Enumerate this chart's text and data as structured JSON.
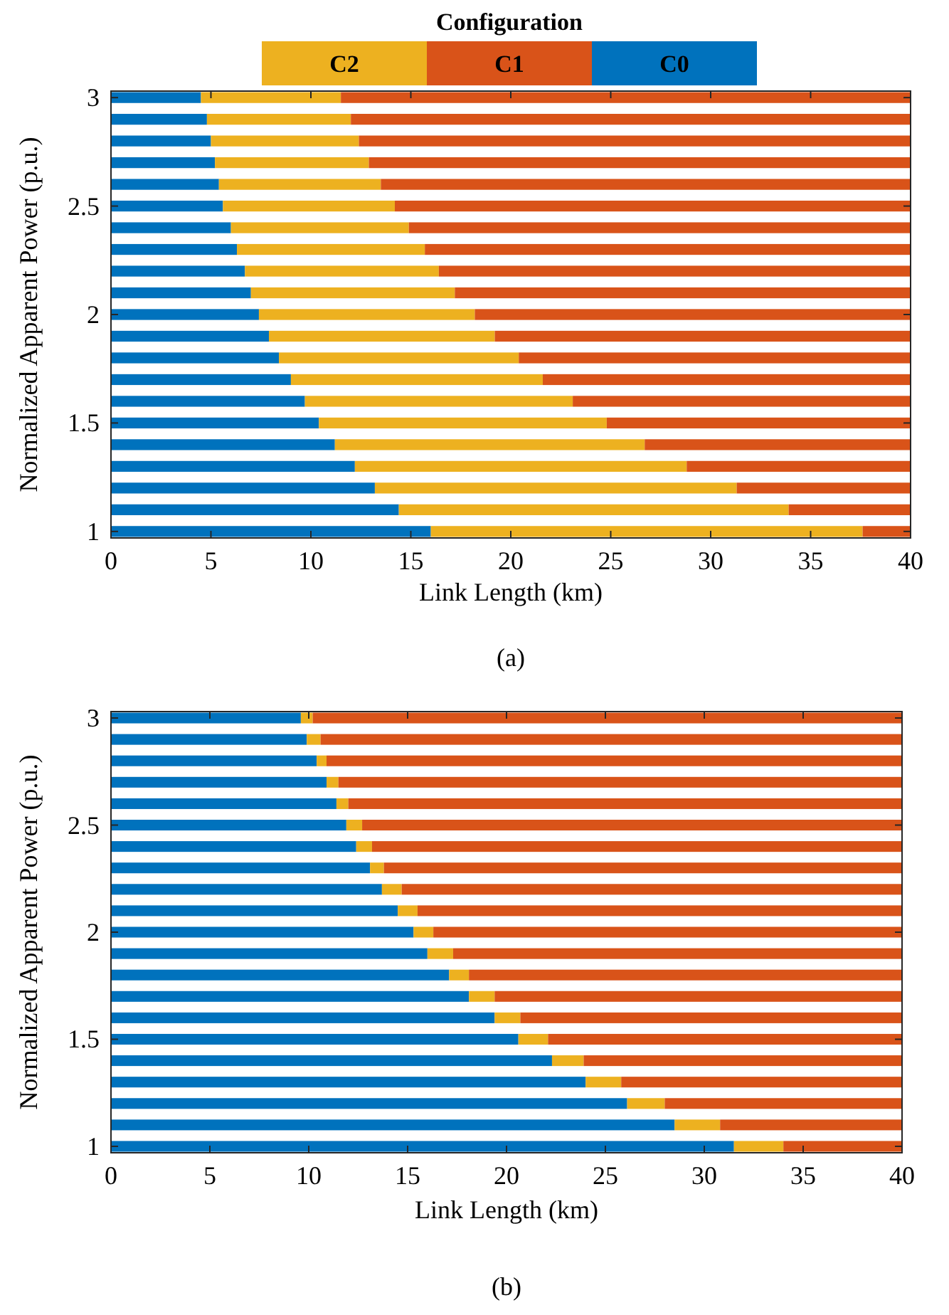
{
  "chart_data": [
    {
      "type": "bar",
      "orientation": "horizontal",
      "stacked": true,
      "title": "(a)",
      "xlabel": "Link Length (km)",
      "ylabel": "Normalized Apparent Power (p.u.)",
      "legend_title": "Configuration",
      "legend": "top",
      "x": [
        1.0,
        1.1,
        1.2,
        1.3,
        1.4,
        1.5,
        1.6,
        1.7,
        1.8,
        1.9,
        2.0,
        2.1,
        2.2,
        2.3,
        2.4,
        2.5,
        2.6,
        2.7,
        2.8,
        2.9,
        3.0
      ],
      "series": [
        {
          "name": "C0",
          "color": "#0072bd",
          "values": [
            16.0,
            14.4,
            13.2,
            12.2,
            11.2,
            10.4,
            9.7,
            9.0,
            8.4,
            7.9,
            7.4,
            7.0,
            6.7,
            6.3,
            6.0,
            5.6,
            5.4,
            5.2,
            5.0,
            4.8,
            4.5
          ]
        },
        {
          "name": "C2",
          "color": "#edb120",
          "values": [
            21.6,
            19.5,
            18.1,
            16.6,
            15.5,
            14.4,
            13.4,
            12.6,
            12.0,
            11.3,
            10.8,
            10.2,
            9.7,
            9.4,
            8.9,
            8.6,
            8.1,
            7.7,
            7.4,
            7.2,
            7.0
          ]
        },
        {
          "name": "C1",
          "color": "#d95319",
          "values": [
            2.4,
            6.1,
            8.7,
            11.2,
            13.3,
            15.2,
            16.9,
            18.4,
            19.6,
            20.8,
            21.8,
            22.8,
            23.6,
            24.3,
            25.1,
            25.8,
            26.5,
            27.1,
            27.6,
            28.0,
            28.5
          ]
        }
      ],
      "xlim": [
        0,
        40
      ],
      "xticks": [
        0,
        5,
        10,
        15,
        20,
        25,
        30,
        35,
        40
      ],
      "ylim": [
        0.97,
        3.03
      ],
      "yticks": [
        1,
        1.5,
        2,
        2.5,
        3
      ]
    },
    {
      "type": "bar",
      "orientation": "horizontal",
      "stacked": true,
      "title": "(b)",
      "xlabel": "Link Length (km)",
      "ylabel": "Normalized Apparent Power (p.u.)",
      "x": [
        1.0,
        1.1,
        1.2,
        1.3,
        1.4,
        1.5,
        1.6,
        1.7,
        1.8,
        1.9,
        2.0,
        2.1,
        2.2,
        2.3,
        2.4,
        2.5,
        2.6,
        2.7,
        2.8,
        2.9,
        3.0
      ],
      "series": [
        {
          "color": "#0072bd",
          "values": [
            31.5,
            28.5,
            26.1,
            24.0,
            22.3,
            20.6,
            19.4,
            18.1,
            17.1,
            16.0,
            15.3,
            14.5,
            13.7,
            13.1,
            12.4,
            11.9,
            11.4,
            10.9,
            10.4,
            9.9,
            9.6
          ]
        },
        {
          "color": "#edb120",
          "values": [
            2.5,
            2.3,
            1.9,
            1.8,
            1.6,
            1.5,
            1.3,
            1.3,
            1.0,
            1.3,
            1.0,
            1.0,
            1.0,
            0.7,
            0.8,
            0.8,
            0.6,
            0.6,
            0.5,
            0.7,
            0.6
          ]
        },
        {
          "color": "#d95319",
          "values": [
            6.0,
            9.2,
            12.0,
            14.2,
            16.1,
            17.9,
            19.3,
            20.6,
            21.9,
            22.7,
            23.7,
            24.5,
            25.3,
            26.2,
            26.8,
            27.3,
            28.0,
            28.5,
            29.1,
            29.4,
            29.8
          ]
        }
      ],
      "xlim": [
        0,
        40
      ],
      "xticks": [
        0,
        5,
        10,
        15,
        20,
        25,
        30,
        35,
        40
      ],
      "ylim": [
        0.97,
        3.03
      ],
      "yticks": [
        1,
        1.5,
        2,
        2.5,
        3
      ]
    }
  ]
}
